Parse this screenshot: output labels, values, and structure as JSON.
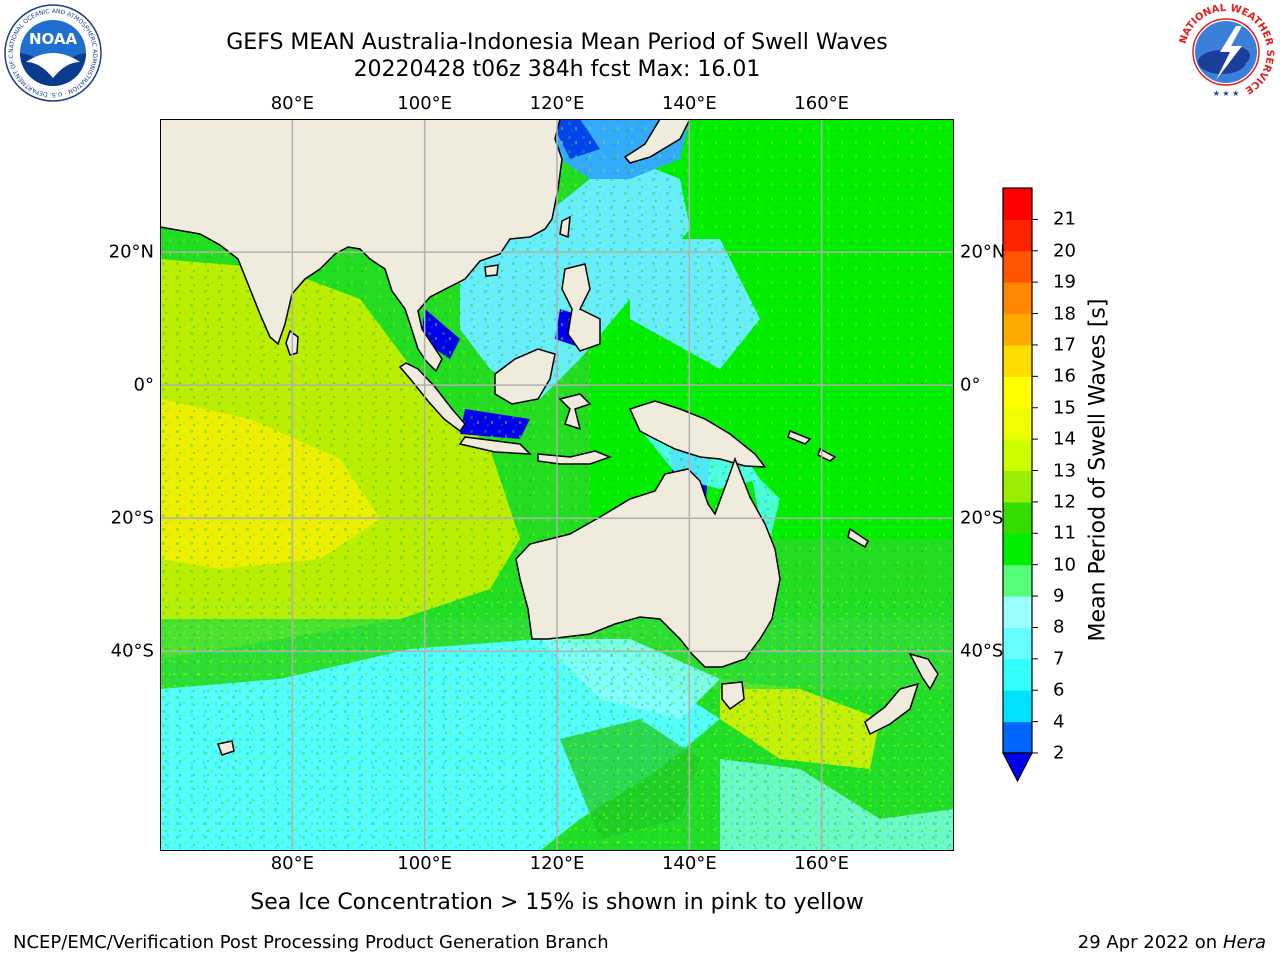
{
  "title": {
    "line1": "GEFS MEAN Australia-Indonesia Mean Period of Swell Waves",
    "line2": "20220428 t06z 384h fcst   Max: 16.01"
  },
  "logos": {
    "noaa_text": "NOAA",
    "noaa_ring_text": "NATIONAL OCEANIC AND ATMOSPHERIC ADMINISTRATION · U.S. DEPARTMENT OF COMMERCE",
    "nws_ring_text": "NATIONAL WEATHER SERVICE"
  },
  "map": {
    "lon_range": [
      60,
      180
    ],
    "lat_range": [
      -70,
      40
    ],
    "lon_ticks": [
      "80°E",
      "100°E",
      "120°E",
      "140°E",
      "160°E"
    ],
    "lat_ticks": [
      "20°N",
      "0°",
      "20°S",
      "40°S"
    ],
    "grid": true,
    "land_color": "#efecdd",
    "grid_color": "#b0b0b0"
  },
  "colorbar": {
    "label": "Mean Period of Swell Waves [s]",
    "ticks": [
      "2",
      "4",
      "6",
      "7",
      "8",
      "9",
      "10",
      "11",
      "12",
      "13",
      "14",
      "15",
      "16",
      "17",
      "18",
      "19",
      "20",
      "21"
    ],
    "colors": [
      "#0066ff",
      "#00e0ff",
      "#33ffff",
      "#66ffff",
      "#99ffff",
      "#55ff77",
      "#00ee00",
      "#33dd00",
      "#99ee00",
      "#ccff00",
      "#eeff00",
      "#ffff00",
      "#ffdd00",
      "#ffaa00",
      "#ff8800",
      "#ff5500",
      "#ff2200",
      "#ff0000"
    ],
    "under_color": "#0000ee"
  },
  "note": "Sea Ice Concentration > 15% is shown in pink to yellow",
  "footer": {
    "left": "NCEP/EMC/Verification Post Processing Product Generation Branch",
    "right_date": "29 Apr 2022 on ",
    "right_host": "Hera"
  }
}
